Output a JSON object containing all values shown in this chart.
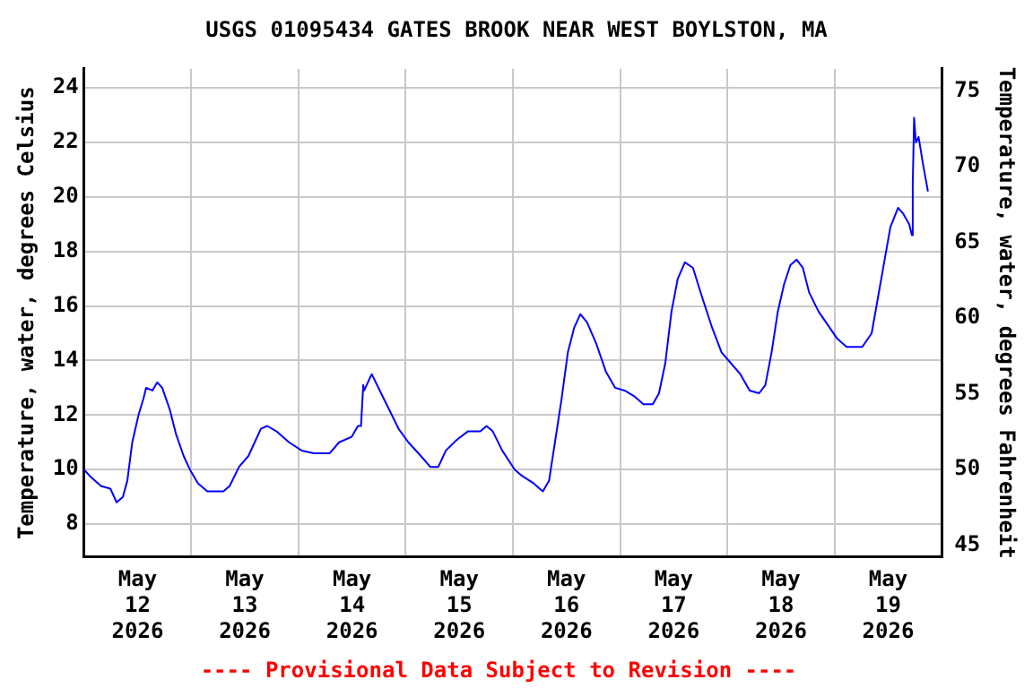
{
  "chart_data": {
    "type": "line",
    "title": "USGS 01095434 GATES BROOK NEAR WEST BOYLSTON, MA",
    "ylabel": "Temperature, water, degrees Celsius",
    "y2label": "Temperature, water, degrees Fahrenheit",
    "annotations": [
      "---- Provisional Data Subject to Revision ----"
    ],
    "x": [
      "2026-05-12T00:00",
      "2026-05-12T01:42",
      "2026-05-12T03:48",
      "2026-05-12T05:54",
      "2026-05-12T07:18",
      "2026-05-12T08:42",
      "2026-05-12T09:42",
      "2026-05-12T10:48",
      "2026-05-12T12:12",
      "2026-05-12T13:18",
      "2026-05-12T13:54",
      "2026-05-12T15:18",
      "2026-05-12T16:24",
      "2026-05-12T17:30",
      "2026-05-12T19:12",
      "2026-05-12T20:36",
      "2026-05-12T22:18",
      "2026-05-12T23:42",
      "2026-05-13T01:30",
      "2026-05-13T03:36",
      "2026-05-13T07:12",
      "2026-05-13T08:36",
      "2026-05-13T10:42",
      "2026-05-13T12:48",
      "2026-05-13T14:12",
      "2026-05-13T15:36",
      "2026-05-13T17:00",
      "2026-05-13T19:06",
      "2026-05-13T21:54",
      "2026-05-14T00:42",
      "2026-05-14T03:30",
      "2026-05-14T07:00",
      "2026-05-14T09:06",
      "2026-05-14T11:54",
      "2026-05-14T13:18",
      "2026-05-14T14:00",
      "2026-05-14T14:30",
      "2026-05-14T14:42",
      "2026-05-14T16:24",
      "2026-05-14T18:12",
      "2026-05-14T20:18",
      "2026-05-14T22:24",
      "2026-05-15T00:36",
      "2026-05-15T03:24",
      "2026-05-15T05:30",
      "2026-05-15T07:18",
      "2026-05-15T09:00",
      "2026-05-15T11:30",
      "2026-05-15T13:54",
      "2026-05-15T16:42",
      "2026-05-15T18:06",
      "2026-05-15T19:30",
      "2026-05-15T21:36",
      "2026-05-16T00:24",
      "2026-05-16T01:48",
      "2026-05-16T04:36",
      "2026-05-16T06:42",
      "2026-05-16T08:06",
      "2026-05-16T09:30",
      "2026-05-16T10:54",
      "2026-05-16T12:18",
      "2026-05-16T13:42",
      "2026-05-16T15:06",
      "2026-05-16T16:36",
      "2026-05-16T18:42",
      "2026-05-16T20:48",
      "2026-05-16T22:54",
      "2026-05-17T01:00",
      "2026-05-17T03:06",
      "2026-05-17T05:12",
      "2026-05-17T07:18",
      "2026-05-17T08:42",
      "2026-05-17T10:06",
      "2026-05-17T11:30",
      "2026-05-17T12:54",
      "2026-05-17T14:30",
      "2026-05-17T16:18",
      "2026-05-17T18:24",
      "2026-05-17T20:36",
      "2026-05-17T22:42",
      "2026-05-18T00:48",
      "2026-05-18T02:54",
      "2026-05-18T05:00",
      "2026-05-18T07:06",
      "2026-05-18T08:30",
      "2026-05-18T09:54",
      "2026-05-18T11:18",
      "2026-05-18T12:42",
      "2026-05-18T14:06",
      "2026-05-18T15:30",
      "2026-05-18T16:54",
      "2026-05-18T18:18",
      "2026-05-18T20:24",
      "2026-05-18T22:30",
      "2026-05-19T00:36",
      "2026-05-19T02:42",
      "2026-05-19T06:12",
      "2026-05-19T08:18",
      "2026-05-19T09:42",
      "2026-05-19T11:06",
      "2026-05-19T12:30",
      "2026-05-19T14:12",
      "2026-05-19T15:18",
      "2026-05-19T16:42",
      "2026-05-19T17:18",
      "2026-05-19T17:30",
      "2026-05-19T17:48",
      "2026-05-19T18:12",
      "2026-05-19T18:48",
      "2026-05-19T19:48",
      "2026-05-19T20:54"
    ],
    "series": [
      {
        "color": "#0000ff",
        "values": [
          10.0,
          9.7,
          9.4,
          9.3,
          8.8,
          9.0,
          9.6,
          11.0,
          12.0,
          12.6,
          13.0,
          12.9,
          13.2,
          13.0,
          12.2,
          11.3,
          10.5,
          10.0,
          9.5,
          9.2,
          9.2,
          9.4,
          10.1,
          10.5,
          11.0,
          11.5,
          11.6,
          11.4,
          11.0,
          10.7,
          10.6,
          10.6,
          11.0,
          11.2,
          11.6,
          11.6,
          13.1,
          12.9,
          13.5,
          12.9,
          12.2,
          11.5,
          11.0,
          10.5,
          10.1,
          10.1,
          10.7,
          11.1,
          11.4,
          11.4,
          11.6,
          11.4,
          10.7,
          10.0,
          9.8,
          9.5,
          9.2,
          9.6,
          11.1,
          12.6,
          14.3,
          15.2,
          15.7,
          15.4,
          14.6,
          13.6,
          13.0,
          12.9,
          12.7,
          12.4,
          12.4,
          12.8,
          13.9,
          15.8,
          17.0,
          17.6,
          17.4,
          16.3,
          15.2,
          14.3,
          13.9,
          13.5,
          12.9,
          12.8,
          13.1,
          14.3,
          15.8,
          16.8,
          17.5,
          17.7,
          17.4,
          16.5,
          15.8,
          15.3,
          14.8,
          14.5,
          14.5,
          15.0,
          16.3,
          17.6,
          18.9,
          19.6,
          19.4,
          19.0,
          18.6,
          20.5,
          22.9,
          22.0,
          22.2,
          21.2,
          20.2
        ]
      }
    ],
    "xlim": [
      "2026-05-12T00:00",
      "2026-05-20T00:00"
    ],
    "xticks": [
      {
        "value": "2026-05-12T12:00",
        "label": "May 12 2026"
      },
      {
        "value": "2026-05-13T00:00",
        "label": null
      },
      {
        "value": "2026-05-13T12:00",
        "label": "May 13 2026"
      },
      {
        "value": "2026-05-14T00:00",
        "label": null
      },
      {
        "value": "2026-05-14T12:00",
        "label": "May 14 2026"
      },
      {
        "value": "2026-05-15T00:00",
        "label": null
      },
      {
        "value": "2026-05-15T12:00",
        "label": "May 15 2026"
      },
      {
        "value": "2026-05-16T00:00",
        "label": null
      },
      {
        "value": "2026-05-16T12:00",
        "label": "May 16 2026"
      },
      {
        "value": "2026-05-17T00:00",
        "label": null
      },
      {
        "value": "2026-05-17T12:00",
        "label": "May 17 2026"
      },
      {
        "value": "2026-05-18T00:00",
        "label": null
      },
      {
        "value": "2026-05-18T12:00",
        "label": "May 18 2026"
      },
      {
        "value": "2026-05-19T00:00",
        "label": null
      },
      {
        "value": "2026-05-19T12:00",
        "label": "May 19 2026"
      }
    ],
    "ylim": [
      6.8,
      24.7
    ],
    "yticks": [
      8,
      10,
      12,
      14,
      16,
      18,
      20,
      22,
      24
    ],
    "y2lim": [
      44.24,
      76.46
    ],
    "y2ticks": [
      45,
      50,
      55,
      60,
      65,
      70,
      75
    ],
    "grid": true,
    "legend": false,
    "marker": "none",
    "line_style": "solid"
  }
}
